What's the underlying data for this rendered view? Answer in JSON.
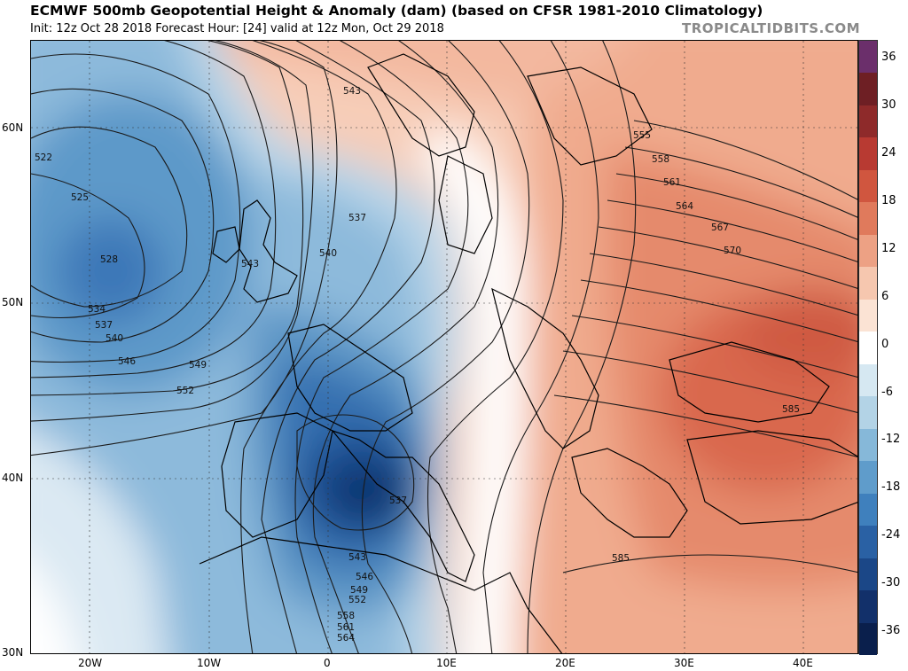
{
  "header": {
    "title": "ECMWF 500mb Geopotential Height & Anomaly (dam) (based on CFSR 1981-2010 Climatology)",
    "subtitle": "Init: 12z Oct 28 2018   Forecast Hour: [24]   valid at 12z Mon, Oct 29 2018",
    "brand": "TROPICALTIDBITS.COM"
  },
  "axes": {
    "lat_labels": [
      "60N",
      "50N",
      "40N",
      "30N"
    ],
    "lon_labels": [
      "20W",
      "10W",
      "0",
      "10E",
      "20E",
      "30E",
      "40E"
    ]
  },
  "colorbar": {
    "labels": [
      "36",
      "30",
      "24",
      "18",
      "12",
      "6",
      "0",
      "-6",
      "-12",
      "-18",
      "-24",
      "-30",
      "-36"
    ],
    "colors": [
      "#6b2f6b",
      "#6e1f24",
      "#8e2a2a",
      "#b83a32",
      "#d0563f",
      "#e07a5c",
      "#eda184",
      "#f6c7af",
      "#fbe3d4",
      "#ffffff",
      "#d6e8f2",
      "#b3d3e6",
      "#86b8d9",
      "#5f9ccb",
      "#3f80bd",
      "#2a61a4",
      "#1b4787",
      "#12306a",
      "#0a1f4c"
    ]
  },
  "contour_labels": [
    "522",
    "525",
    "528",
    "534",
    "537",
    "540",
    "546",
    "549",
    "552",
    "543",
    "540",
    "537",
    "543",
    "555",
    "558",
    "561",
    "564",
    "567",
    "570",
    "585",
    "537",
    "543",
    "546",
    "549",
    "552",
    "558",
    "561",
    "564",
    "585"
  ]
}
